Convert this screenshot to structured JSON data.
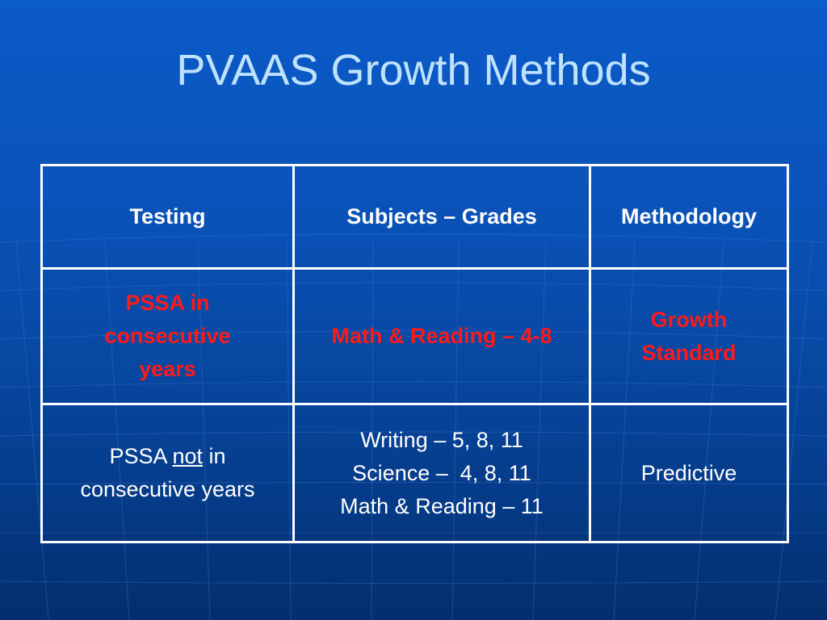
{
  "slide": {
    "title": "PVAAS Growth Methods"
  },
  "table": {
    "headers": [
      "Testing",
      "Subjects – Grades",
      "Methodology"
    ],
    "row1": {
      "testing_lines": [
        "PSSA in",
        "consecutive",
        "years"
      ],
      "subjects": "Math & Reading – 4-8",
      "methodology_lines": [
        "Growth",
        "Standard"
      ]
    },
    "row2": {
      "testing_prefix": "PSSA ",
      "testing_underlined": "not",
      "testing_suffix": " in",
      "testing_line2": "consecutive years",
      "subjects_lines": [
        "Writing – 5, 8, 11",
        "Science –  4, 8, 11",
        "Math & Reading – 11"
      ],
      "methodology": "Predictive"
    }
  },
  "colors": {
    "background": "#0a52b8",
    "title": "#bfe2ff",
    "highlight_text": "#ff1a1a",
    "body_text": "#ffffff"
  }
}
